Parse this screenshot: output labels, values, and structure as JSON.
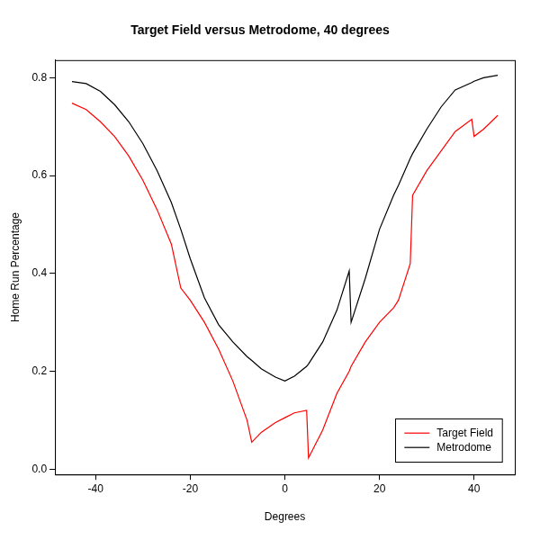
{
  "chart_data": {
    "type": "line",
    "title": "Target Field versus Metrodome, 40 degrees",
    "x_label": "Degrees",
    "y_label": "Home Run Percentage",
    "x": [
      -45,
      -42,
      -39,
      -36,
      -33,
      -30,
      -27,
      -24,
      -22,
      -20,
      -17,
      -14,
      -11,
      -8,
      -7,
      -5,
      -2,
      0,
      2,
      4.6,
      5,
      8,
      11,
      13.6,
      14,
      17,
      20,
      23,
      24,
      26.5,
      27,
      30,
      33,
      36,
      39.5,
      40,
      42,
      45
    ],
    "series": [
      {
        "name": "Target Field",
        "color": "#ff0000",
        "line_style": "solid",
        "values": [
          0.748,
          0.735,
          0.71,
          0.68,
          0.64,
          0.59,
          0.53,
          0.46,
          0.37,
          0.345,
          0.3,
          0.245,
          0.18,
          0.1,
          0.055,
          0.075,
          0.095,
          0.105,
          0.115,
          0.12,
          0.023,
          0.08,
          0.155,
          0.2,
          0.21,
          0.26,
          0.3,
          0.33,
          0.345,
          0.42,
          0.56,
          0.61,
          0.65,
          0.69,
          0.715,
          0.68,
          0.695,
          0.723
        ]
      },
      {
        "name": "Metrodome",
        "color": "#000000",
        "line_style": "solid",
        "values": [
          0.792,
          0.788,
          0.772,
          0.745,
          0.71,
          0.665,
          0.61,
          0.545,
          0.49,
          0.43,
          0.35,
          0.295,
          0.26,
          0.23,
          0.222,
          0.205,
          0.188,
          0.18,
          0.19,
          0.21,
          0.215,
          0.26,
          0.325,
          0.405,
          0.3,
          0.39,
          0.49,
          0.56,
          0.58,
          0.635,
          0.645,
          0.695,
          0.74,
          0.775,
          0.79,
          0.793,
          0.8,
          0.805
        ]
      }
    ],
    "xlim": [
      -48.6,
      48.6
    ],
    "xticks": [
      -40,
      -20,
      0,
      20,
      40
    ],
    "ylim": [
      -0.011,
      0.836
    ],
    "yticks": [
      {
        "value": 0,
        "label": "0.0"
      },
      0.2,
      0.4,
      0.6,
      0.8
    ],
    "grid": false,
    "legend": "bottom right"
  }
}
